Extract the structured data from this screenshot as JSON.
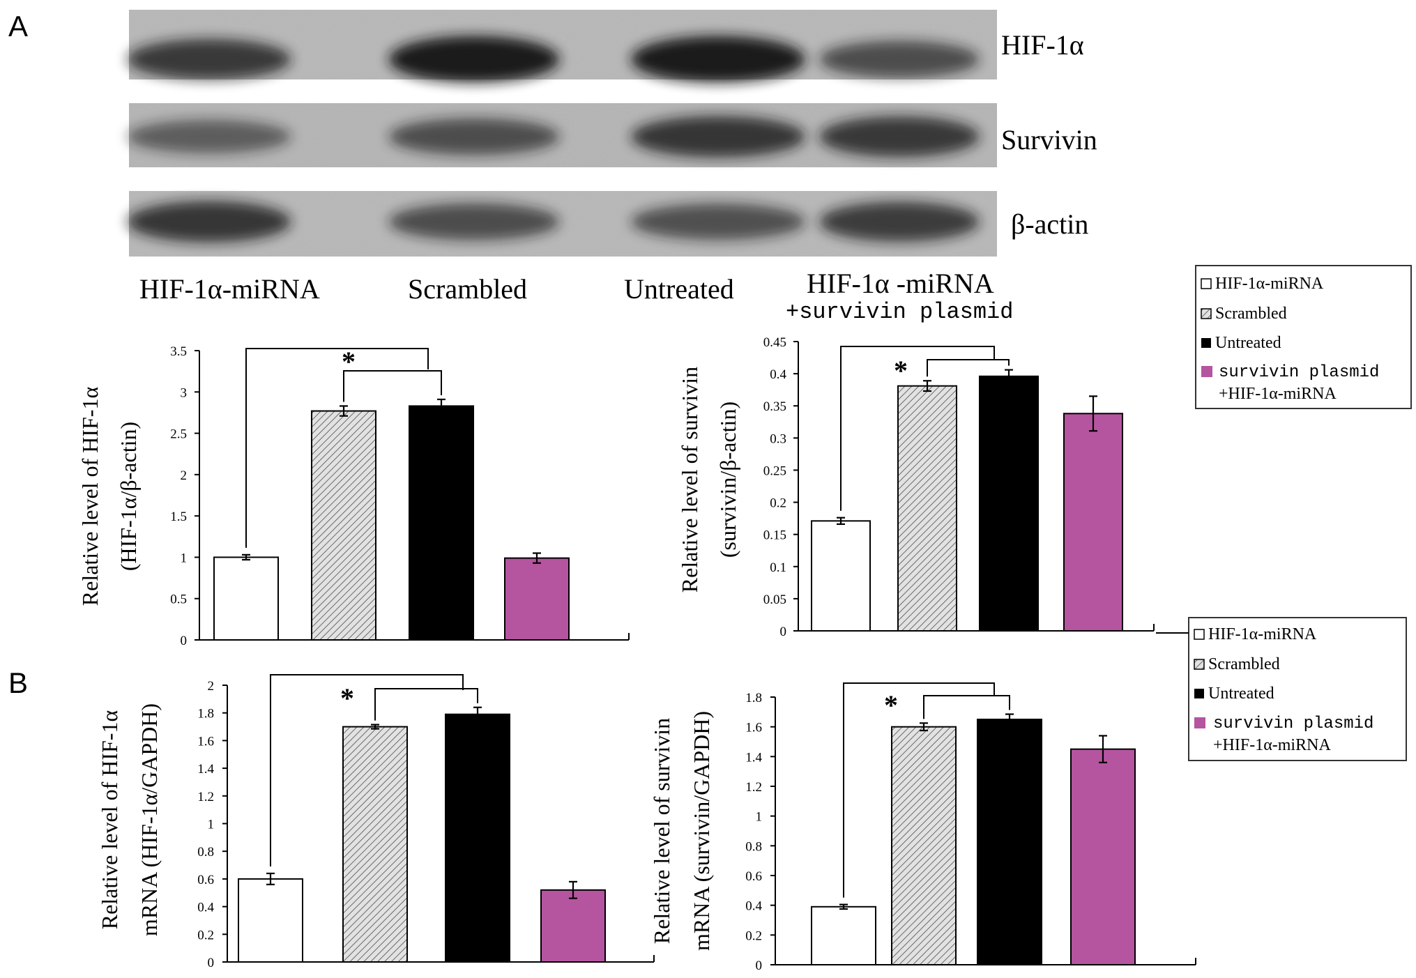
{
  "panel_letters": {
    "a": "A",
    "b": "B"
  },
  "blot": {
    "rows": [
      {
        "label": "HIF-1α",
        "band_intensities": [
          0.78,
          0.97,
          0.97,
          0.66
        ]
      },
      {
        "label": "Survivin",
        "band_intensities": [
          0.55,
          0.65,
          0.8,
          0.78
        ]
      },
      {
        "label": "β-actin",
        "band_intensities": [
          0.8,
          0.66,
          0.64,
          0.76
        ]
      }
    ],
    "lane_labels": [
      "HIF-1α-miRNA",
      "Scrambled",
      "Untreated",
      "HIF-1α -miRNA",
      "+survivin plasmid"
    ]
  },
  "legends": {
    "top": [
      "HIF-1α-miRNA",
      "Scrambled",
      "Untreated",
      "survivin plasmid",
      "+HIF-1α-miRNA"
    ],
    "bottom": [
      "HIF-1α-miRNA",
      "Scrambled",
      "Untreated",
      "survivin plasmid",
      "+HIF-1α-miRNA"
    ]
  },
  "colors": {
    "bar_white": "#ffffff",
    "bar_hatched": "#d8d8d8",
    "bar_black": "#000000",
    "bar_magenta": "#b5559f",
    "blot_background": "#b7b7b7",
    "band": "#151515"
  },
  "significance_marker": "*",
  "chart_data": [
    {
      "type": "bar",
      "panel": "A",
      "categories": [
        "HIF-1α-miRNA",
        "Scrambled",
        "Untreated",
        "survivin plasmid +HIF-1α-miRNA"
      ],
      "values": [
        1.0,
        2.77,
        2.83,
        0.99
      ],
      "errors": [
        0.03,
        0.06,
        0.08,
        0.06
      ],
      "ylabel_lines": [
        "Relative level of HIF-1α",
        "(HIF-1α/β-actin)"
      ],
      "ylim": [
        0,
        3.5
      ],
      "ticks": [
        "0",
        "0.5",
        "1",
        "1.5",
        "2",
        "2.5",
        "3",
        "3.5"
      ]
    },
    {
      "type": "bar",
      "panel": "A",
      "categories": [
        "HIF-1α-miRNA",
        "Scrambled",
        "Untreated",
        "survivin plasmid +HIF-1α-miRNA"
      ],
      "values": [
        0.171,
        0.381,
        0.396,
        0.338
      ],
      "errors": [
        0.005,
        0.008,
        0.01,
        0.027
      ],
      "ylabel_lines": [
        "Relative level of survivin",
        "(survivin/β-actin)"
      ],
      "ylim": [
        0,
        0.45
      ],
      "ticks": [
        "0",
        "0.05",
        "0.1",
        "0.15",
        "0.2",
        "0.25",
        "0.3",
        "0.35",
        "0.4",
        "0.45"
      ]
    },
    {
      "type": "bar",
      "panel": "B",
      "categories": [
        "HIF-1α-miRNA",
        "Scrambled",
        "Untreated",
        "survivin plasmid +HIF-1α-miRNA"
      ],
      "values": [
        0.6,
        1.7,
        1.79,
        0.52
      ],
      "errors": [
        0.04,
        0.015,
        0.05,
        0.06
      ],
      "ylabel_lines": [
        "Relative level of HIF-1α",
        "mRNA (HIF-1α/GAPDH)"
      ],
      "ylim": [
        0,
        2
      ],
      "ticks": [
        "0",
        "0.2",
        "0.4",
        "0.6",
        "0.8",
        "1",
        "1.2",
        "1.4",
        "1.6",
        "1.8",
        "2"
      ]
    },
    {
      "type": "bar",
      "panel": "B",
      "categories": [
        "HIF-1α-miRNA",
        "Scrambled",
        "Untreated",
        "survivin plasmid +HIF-1α-miRNA"
      ],
      "values": [
        0.39,
        1.6,
        1.65,
        1.45
      ],
      "errors": [
        0.015,
        0.025,
        0.035,
        0.09
      ],
      "ylabel_lines": [
        "Relative level of survivin",
        "mRNA (survivin/GAPDH)"
      ],
      "ylim": [
        0,
        1.8
      ],
      "ticks": [
        "0",
        "0.2",
        "0.4",
        "0.6",
        "0.8",
        "1",
        "1.2",
        "1.4",
        "1.6",
        "1.8"
      ]
    }
  ]
}
